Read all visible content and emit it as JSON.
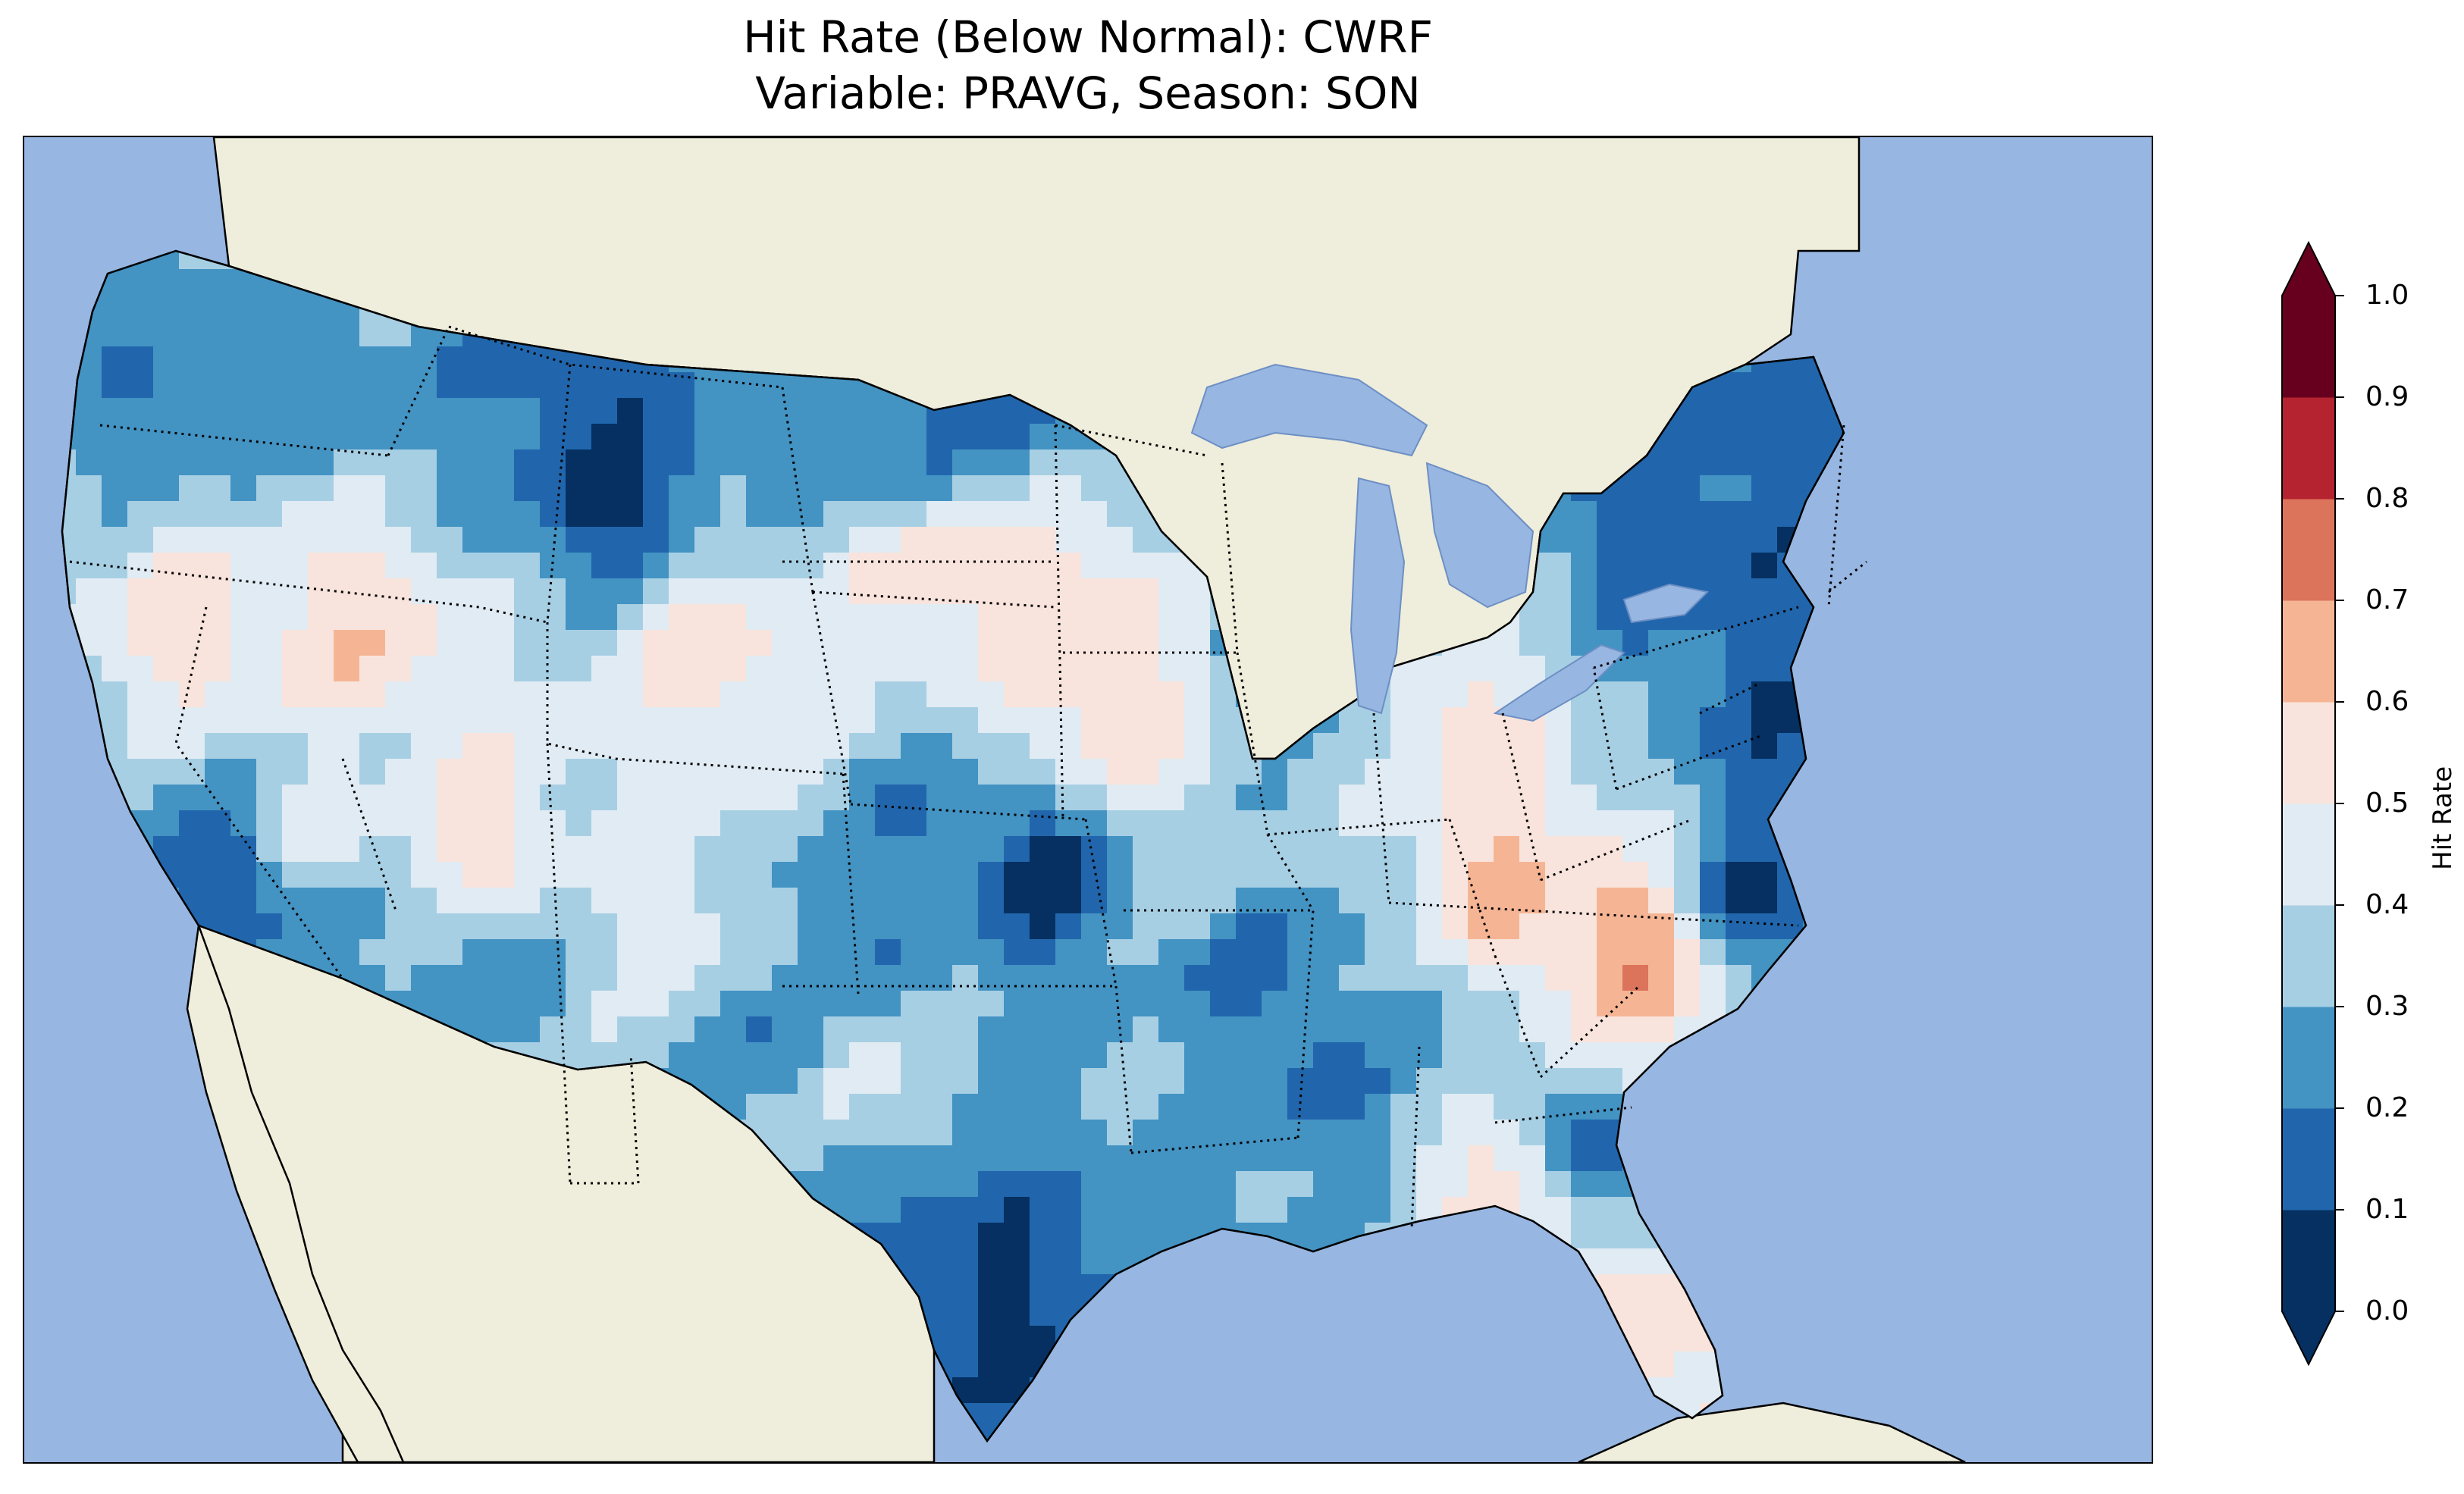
{
  "title": {
    "line1": "Hit Rate (Below Normal): CWRF",
    "line2": "Variable: PRAVG, Season: SON"
  },
  "map": {
    "region": "Contiguous United States",
    "ocean_color": "#97b6e1",
    "land_color": "#efeddb",
    "lake_color": "#97b6e1",
    "state_borders": "dotted",
    "coastline": "solid"
  },
  "colorbar": {
    "label": "Hit Rate",
    "ticks": [
      "0.0",
      "0.1",
      "0.2",
      "0.3",
      "0.4",
      "0.5",
      "0.6",
      "0.7",
      "0.8",
      "0.9",
      "1.0"
    ],
    "bins": [
      {
        "from": 0.0,
        "to": 0.1,
        "color": "#053061"
      },
      {
        "from": 0.1,
        "to": 0.2,
        "color": "#2166ac"
      },
      {
        "from": 0.2,
        "to": 0.3,
        "color": "#4393c3"
      },
      {
        "from": 0.3,
        "to": 0.4,
        "color": "#a7cfe4"
      },
      {
        "from": 0.4,
        "to": 0.5,
        "color": "#e1ebf3"
      },
      {
        "from": 0.5,
        "to": 0.6,
        "color": "#f8e4dc"
      },
      {
        "from": 0.6,
        "to": 0.7,
        "color": "#f5b595"
      },
      {
        "from": 0.7,
        "to": 0.8,
        "color": "#dc735b"
      },
      {
        "from": 0.8,
        "to": 0.9,
        "color": "#b4232f"
      },
      {
        "from": 0.9,
        "to": 1.0,
        "color": "#67001f"
      }
    ],
    "extend": "both"
  }
}
